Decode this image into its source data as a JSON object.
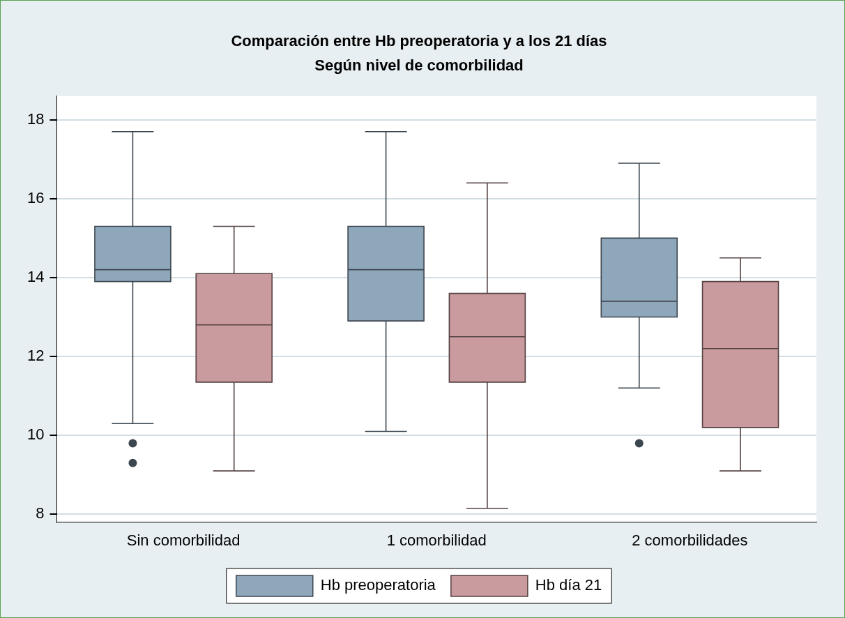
{
  "chart_data": {
    "type": "box",
    "title": "Comparación entre Hb preoperatoria y a los 21 días",
    "subtitle": "Según nivel de comorbilidad",
    "categories": [
      "Sin comorbilidad",
      "1 comorbilidad",
      "2 comorbilidades"
    ],
    "series": [
      {
        "name": "Hb preoperatoria",
        "color": "#8fa7bb",
        "boxes": [
          {
            "low": 10.3,
            "q1": 13.9,
            "median": 14.2,
            "q3": 15.3,
            "high": 17.7,
            "outliers": [
              9.8,
              9.3
            ]
          },
          {
            "low": 10.1,
            "q1": 12.9,
            "median": 14.2,
            "q3": 15.3,
            "high": 17.7
          },
          {
            "low": 11.2,
            "q1": 13.0,
            "median": 13.4,
            "q3": 15.0,
            "high": 16.9,
            "outliers": [
              9.8
            ]
          }
        ]
      },
      {
        "name": "Hb día 21",
        "color": "#c99a9e",
        "boxes": [
          {
            "low": 9.1,
            "q1": 11.35,
            "median": 12.8,
            "q3": 14.1,
            "high": 15.3
          },
          {
            "low": 8.15,
            "q1": 11.35,
            "median": 12.5,
            "q3": 13.6,
            "high": 16.4
          },
          {
            "low": 9.1,
            "q1": 10.2,
            "median": 12.2,
            "q3": 13.9,
            "high": 14.5
          }
        ]
      }
    ],
    "ylim": [
      7.8,
      18.6
    ],
    "yticks": [
      8,
      10,
      12,
      14,
      16,
      18
    ],
    "grid": "y",
    "legend": "bottom"
  }
}
